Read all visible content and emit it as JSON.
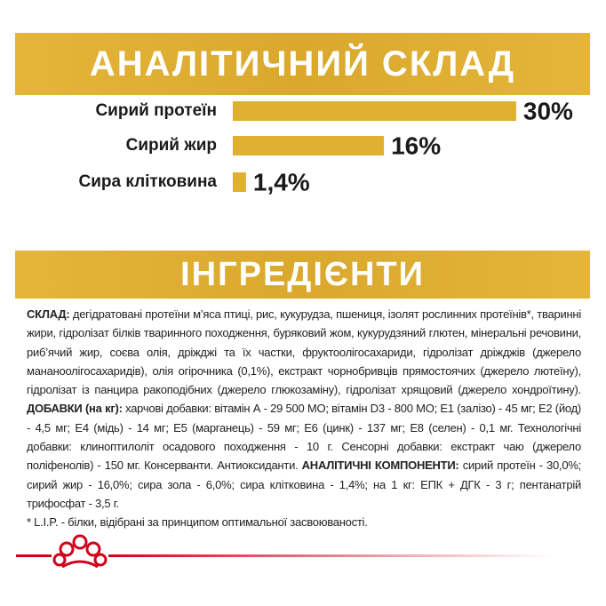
{
  "chart_data": {
    "type": "bar",
    "title": "АНАЛІТИЧНИЙ СКЛАД",
    "categories": [
      "Сирий протеїн",
      "Сирий жир",
      "Сира клітковина"
    ],
    "values": [
      30,
      16,
      1.4
    ],
    "value_labels": [
      "30%",
      "16%",
      "1,4%"
    ],
    "color": "#e0b031"
  },
  "ingredients": {
    "title": "ІНГРЕДІЄНТИ",
    "text": [
      {
        "bold": true,
        "text": "СКЛАД:"
      },
      {
        "bold": false,
        "text": " дегідратовані протеїни м’яса птиці, рис, кукурудза, пшениця, ізолят рослинних протеїнів*, тваринні жири, гідролізат білків тваринного походження, буряковий жом, кукурудзяний глютен, мінеральні речовини, риб’ячий жир, соєва олія, дріжджі та їх частки, фруктоолігосахариди, гідролізат дріжджів (джерело мананоолігосахаридів), олія огірочника (0,1%), екстракт чорнобривців прямостоячих (джерело лютеїну), гідролізат із панцира ракоподібних (джерело глюкозаміну), гідролізат хрящовий (джерело хондроїтину). "
      },
      {
        "bold": true,
        "text": "ДОБАВКИ (на кг):"
      },
      {
        "bold": false,
        "text": " харчові добавки: вітамін А - 29 500 МО; вітамін D3 - 800 МО; Е1 (залізо) - 45 мг; Е2 (йод) - 4,5 мг; Е4 (мідь) - 14 мг; Е5 (марганець) - 59 мг; Е6 (цинк) - 137 мг; Е8 (селен) - 0,1 мг. Технологічні добавки: клиноптилоліт осадового походження - 10 г. Сенсорні добавки: екстракт чаю (джерело поліфенолів) - 150 мг. Консерванти. Антиоксиданти. "
      },
      {
        "bold": true,
        "text": "АНАЛІТИЧНІ КОМПОНЕНТИ:"
      },
      {
        "bold": false,
        "text": " сирий протеїн - 30,0%; сирий жир - 16,0%; сира зола - 6,0%; сира клітковина - 1,4%; на 1 кг: ЕПК + ДГК - 3 г; пентанатрій трифосфат - 3,5 г."
      }
    ],
    "footnote": "* L.I.P. - білки, відібрані за принципом оптимальної засвоюваності."
  }
}
